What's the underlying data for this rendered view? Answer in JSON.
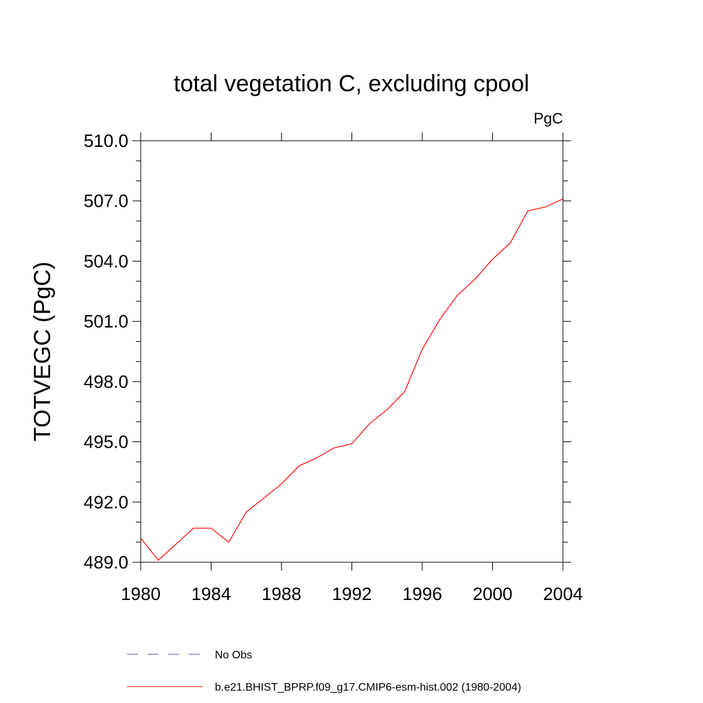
{
  "chart_data": {
    "type": "line",
    "title": "total vegetation C, excluding cpool",
    "units_label": "PgC",
    "ylabel": "TOTVEGC  (PgC)",
    "xlabel": "",
    "xlim": [
      1980,
      2004
    ],
    "ylim": [
      489.0,
      510.0
    ],
    "x_ticks": [
      1980,
      1984,
      1988,
      1992,
      1996,
      2000,
      2004
    ],
    "y_ticks": [
      "489.0",
      "492.0",
      "495.0",
      "498.0",
      "501.0",
      "504.0",
      "507.0",
      "510.0"
    ],
    "grid": false,
    "legend_placement": "bottom-left",
    "series": [
      {
        "name": "No Obs",
        "color": "#5a4fcf",
        "dash": "dashed",
        "x": [],
        "y": []
      },
      {
        "name": "b.e21.BHIST_BPRP.f09_g17.CMIP6-esm-hist.002 (1980-2004)",
        "color": "#ff0000",
        "dash": "solid",
        "x": [
          1980,
          1981,
          1982,
          1983,
          1984,
          1985,
          1986,
          1987,
          1988,
          1989,
          1990,
          1991,
          1992,
          1993,
          1994,
          1995,
          1996,
          1997,
          1998,
          1999,
          2000,
          2001,
          2002,
          2003,
          2004
        ],
        "y": [
          490.2,
          489.1,
          489.9,
          490.7,
          490.7,
          490.0,
          491.5,
          492.2,
          492.9,
          493.8,
          494.2,
          494.7,
          494.9,
          495.9,
          496.6,
          497.5,
          499.6,
          501.1,
          502.3,
          503.1,
          504.1,
          504.9,
          506.5,
          506.7,
          507.1
        ]
      }
    ]
  }
}
